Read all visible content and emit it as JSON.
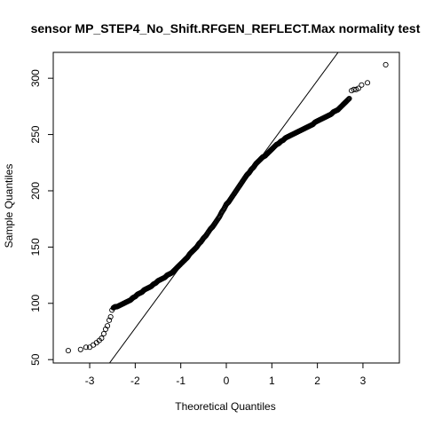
{
  "chart_data": {
    "type": "scatter",
    "title": "sensor MP_STEP4_No_Shift.RFGEN_REFLECT.Max normality test",
    "xlabel": "Theoretical Quantiles",
    "ylabel": "Sample Quantiles",
    "xlim": [
      -3.8,
      3.8
    ],
    "ylim": [
      47,
      323
    ],
    "x_ticks": [
      -3,
      -2,
      -1,
      0,
      1,
      2,
      3
    ],
    "y_ticks": [
      50,
      100,
      150,
      200,
      250,
      300
    ],
    "grid": false,
    "legend": "none",
    "reference_line": {
      "intercept": 188,
      "slope": 55
    },
    "point_color": "#000000",
    "series": [
      {
        "points": [
          [
            -3.47,
            58
          ],
          [
            -3.2,
            59
          ],
          [
            -3.08,
            61
          ],
          [
            -3.0,
            61
          ],
          [
            -2.92,
            63
          ],
          [
            -2.85,
            65
          ],
          [
            -2.79,
            67
          ],
          [
            -2.74,
            69
          ],
          [
            -2.69,
            73
          ],
          [
            -2.65,
            77
          ],
          [
            -2.61,
            80
          ],
          [
            -2.57,
            85
          ],
          [
            -2.54,
            88
          ],
          [
            -2.51,
            94
          ],
          [
            -2.48,
            96
          ],
          [
            -2.44,
            97
          ],
          [
            -2.4,
            97
          ],
          [
            -2.35,
            98
          ],
          [
            -2.3,
            99
          ],
          [
            -2.25,
            100
          ],
          [
            -2.2,
            101
          ],
          [
            -2.15,
            102
          ],
          [
            -2.1,
            103
          ],
          [
            -2.05,
            105
          ],
          [
            -2.0,
            106
          ],
          [
            -1.95,
            108
          ],
          [
            -1.9,
            109
          ],
          [
            -1.85,
            110
          ],
          [
            -1.8,
            112
          ],
          [
            -1.75,
            113
          ],
          [
            -1.7,
            114
          ],
          [
            -1.65,
            115
          ],
          [
            -1.6,
            117
          ],
          [
            -1.55,
            118
          ],
          [
            -1.5,
            120
          ],
          [
            -1.45,
            121
          ],
          [
            -1.4,
            122
          ],
          [
            -1.35,
            123
          ],
          [
            -1.3,
            125
          ],
          [
            -1.25,
            126
          ],
          [
            -1.2,
            127
          ],
          [
            -1.15,
            129
          ],
          [
            -1.1,
            131
          ],
          [
            -1.05,
            133
          ],
          [
            -1.0,
            135
          ],
          [
            -0.95,
            137
          ],
          [
            -0.9,
            139
          ],
          [
            -0.85,
            141
          ],
          [
            -0.8,
            144
          ],
          [
            -0.75,
            146
          ],
          [
            -0.7,
            148
          ],
          [
            -0.65,
            150
          ],
          [
            -0.6,
            153
          ],
          [
            -0.55,
            155
          ],
          [
            -0.5,
            158
          ],
          [
            -0.45,
            160
          ],
          [
            -0.4,
            163
          ],
          [
            -0.35,
            166
          ],
          [
            -0.3,
            168
          ],
          [
            -0.25,
            171
          ],
          [
            -0.2,
            174
          ],
          [
            -0.15,
            177
          ],
          [
            -0.1,
            181
          ],
          [
            -0.05,
            184
          ],
          [
            0.0,
            188
          ],
          [
            0.05,
            190
          ],
          [
            0.1,
            193
          ],
          [
            0.15,
            196
          ],
          [
            0.2,
            199
          ],
          [
            0.25,
            202
          ],
          [
            0.3,
            205
          ],
          [
            0.35,
            208
          ],
          [
            0.4,
            211
          ],
          [
            0.45,
            214
          ],
          [
            0.5,
            216
          ],
          [
            0.55,
            219
          ],
          [
            0.6,
            221
          ],
          [
            0.65,
            224
          ],
          [
            0.7,
            226
          ],
          [
            0.75,
            228
          ],
          [
            0.8,
            230
          ],
          [
            0.85,
            231
          ],
          [
            0.9,
            233
          ],
          [
            0.95,
            235
          ],
          [
            1.0,
            237
          ],
          [
            1.05,
            239
          ],
          [
            1.1,
            241
          ],
          [
            1.15,
            242
          ],
          [
            1.2,
            244
          ],
          [
            1.25,
            245
          ],
          [
            1.3,
            247
          ],
          [
            1.35,
            248
          ],
          [
            1.4,
            249
          ],
          [
            1.45,
            250
          ],
          [
            1.5,
            251
          ],
          [
            1.55,
            252
          ],
          [
            1.6,
            253
          ],
          [
            1.65,
            254
          ],
          [
            1.7,
            255
          ],
          [
            1.75,
            256
          ],
          [
            1.8,
            257
          ],
          [
            1.85,
            258
          ],
          [
            1.9,
            259
          ],
          [
            1.95,
            261
          ],
          [
            2.0,
            262
          ],
          [
            2.05,
            263
          ],
          [
            2.1,
            264
          ],
          [
            2.15,
            265
          ],
          [
            2.2,
            266
          ],
          [
            2.25,
            267
          ],
          [
            2.3,
            268
          ],
          [
            2.35,
            270
          ],
          [
            2.4,
            271
          ],
          [
            2.45,
            272
          ],
          [
            2.5,
            274
          ],
          [
            2.55,
            276
          ],
          [
            2.6,
            278
          ],
          [
            2.65,
            280
          ],
          [
            2.7,
            282
          ],
          [
            2.75,
            289
          ],
          [
            2.8,
            290
          ],
          [
            2.85,
            290
          ],
          [
            2.9,
            291
          ],
          [
            2.97,
            294
          ],
          [
            3.1,
            296
          ],
          [
            3.5,
            312
          ]
        ]
      }
    ]
  }
}
